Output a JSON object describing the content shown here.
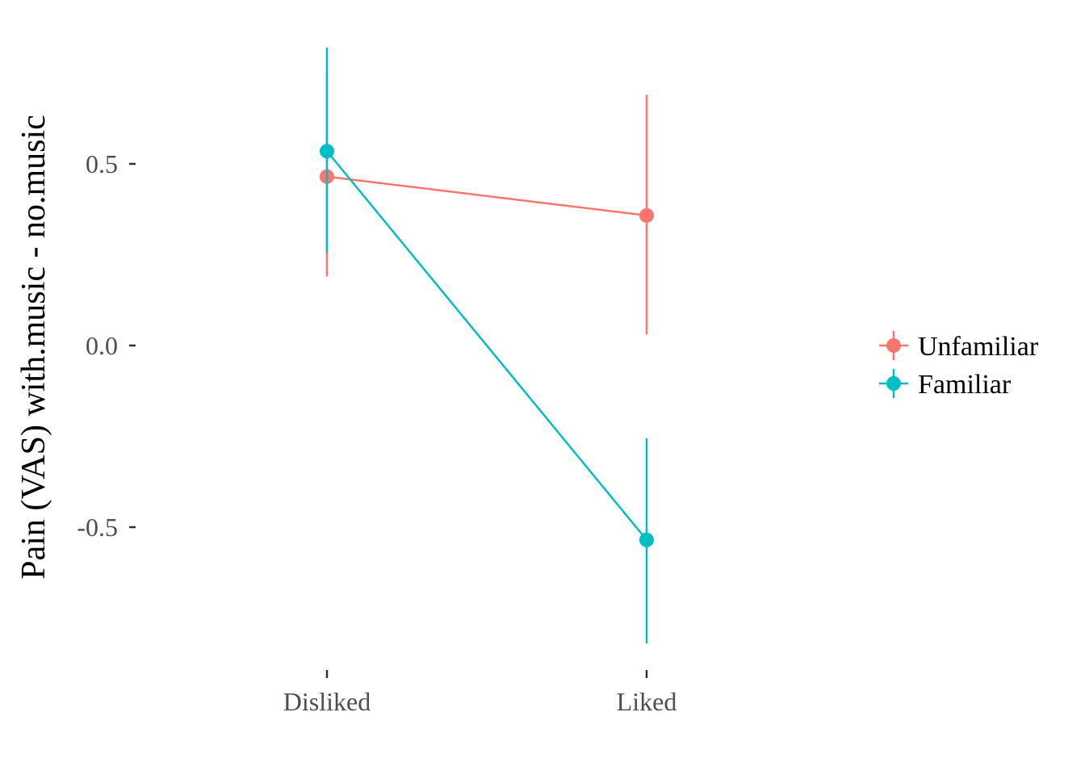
{
  "chart_data": {
    "type": "line",
    "title": "",
    "xlabel": "",
    "ylabel": "Pain (VAS) with.music - no.music",
    "categories": [
      "Disliked",
      "Liked"
    ],
    "ylim": [
      -0.9,
      0.84
    ],
    "yticks": [
      {
        "value": 0.5,
        "label": "0.5"
      },
      {
        "value": 0.0,
        "label": "0.0"
      },
      {
        "value": -0.5,
        "label": "-0.5"
      }
    ],
    "grid": false,
    "legend_position": "right",
    "series": [
      {
        "name": "Unfamiliar",
        "color": "#F8766D",
        "values": [
          0.465,
          0.358
        ],
        "lower": [
          0.19,
          0.03
        ],
        "upper": [
          0.745,
          0.69
        ]
      },
      {
        "name": "Familiar",
        "color": "#00BFC4",
        "values": [
          0.535,
          -0.535
        ],
        "lower": [
          0.255,
          -0.82
        ],
        "upper": [
          0.82,
          -0.255
        ]
      }
    ]
  }
}
